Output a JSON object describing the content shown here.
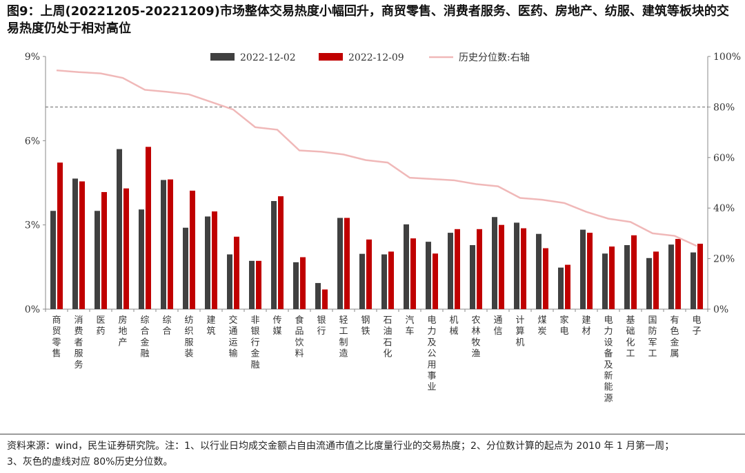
{
  "title": "图9：上周(20221205-20221209)市场整体交易热度小幅回升，商贸零售、消费者服务、医药、房地产、纺服、建筑等板块的交易热度仍处于相对高位",
  "footer": {
    "line1": "资料来源：wind，民生证券研究院。注：1、以行业日均成交金额占自由流通市值之比度量行业的交易热度；2、分位数计算的起点为 2010 年 1 月第一周；",
    "line2": "3、灰色的虚线对应 80%历史分位数。"
  },
  "chart_data": {
    "type": "bar",
    "categories": [
      "商贸零售",
      "消费者服务",
      "医药",
      "房地产",
      "综合金融",
      "综合",
      "纺织服装",
      "建筑",
      "交通运输",
      "非银行金融",
      "传媒",
      "食品饮料",
      "银行",
      "轻工制造",
      "钢铁",
      "石油石化",
      "汽车",
      "电力及公用事业",
      "机械",
      "农林牧渔",
      "通信",
      "计算机",
      "煤炭",
      "家电",
      "建材",
      "电力设备及新能源",
      "基础化工",
      "国防军工",
      "有色金属",
      "电子"
    ],
    "series": [
      {
        "name": "2022-12-02",
        "type": "bar",
        "axis": "left",
        "color": "#404040",
        "values": [
          3.5,
          4.65,
          3.5,
          5.7,
          3.55,
          4.6,
          2.9,
          3.3,
          1.95,
          1.72,
          3.85,
          1.67,
          0.93,
          3.25,
          1.97,
          1.95,
          3.02,
          2.4,
          2.72,
          2.28,
          3.28,
          3.08,
          2.68,
          1.48,
          2.83,
          1.98,
          2.28,
          1.82,
          2.3,
          2.02
        ]
      },
      {
        "name": "2022-12-09",
        "type": "bar",
        "axis": "left",
        "color": "#c00000",
        "values": [
          5.22,
          4.55,
          4.17,
          4.3,
          5.78,
          4.62,
          4.22,
          3.48,
          2.58,
          1.72,
          4.02,
          1.85,
          0.7,
          3.25,
          2.48,
          2.05,
          2.52,
          1.98,
          2.85,
          2.85,
          3.0,
          2.88,
          2.17,
          1.58,
          2.72,
          2.23,
          2.63,
          2.05,
          2.5,
          2.33
        ]
      },
      {
        "name": "历史分位数:右轴",
        "type": "line",
        "axis": "right",
        "color": "#f0b8b8",
        "values": [
          94.5,
          93.8,
          93.3,
          91.5,
          86.8,
          86.0,
          85.0,
          82.0,
          79.0,
          72.0,
          71.0,
          62.8,
          62.3,
          61.2,
          59.0,
          58.0,
          52.0,
          51.5,
          51.0,
          49.5,
          48.6,
          44.0,
          43.3,
          42.0,
          38.5,
          35.8,
          34.5,
          30.0,
          29.0,
          25.0
        ]
      }
    ],
    "y_left": {
      "ticks": [
        "9%",
        "6%",
        "3%",
        "0%"
      ],
      "values": [
        9,
        6,
        3,
        0
      ],
      "ylim": [
        0,
        9
      ]
    },
    "y_right": {
      "ticks": [
        "100%",
        "80%",
        "60%",
        "40%",
        "20%",
        "0%"
      ],
      "values": [
        100,
        80,
        60,
        40,
        20,
        0
      ],
      "ylim": [
        0,
        100
      ]
    },
    "reference_line": {
      "axis": "right",
      "value": 80,
      "style": "dashed",
      "color": "#666666"
    },
    "legend": {
      "placement": "top-center",
      "entries": [
        "2022-12-02",
        "2022-12-09",
        "历史分位数:右轴"
      ]
    },
    "grid": false
  }
}
